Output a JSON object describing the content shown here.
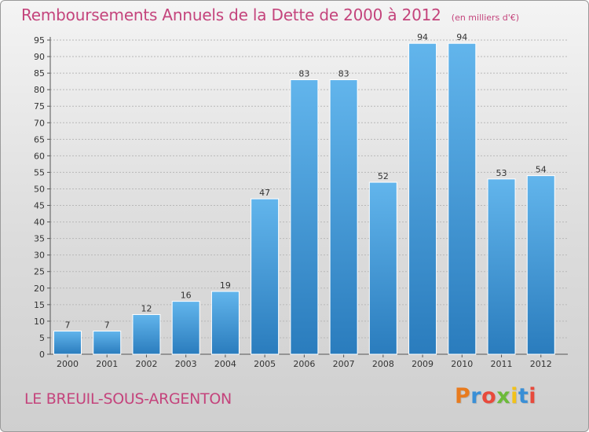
{
  "header": {
    "title": "Remboursements Annuels de la Dette de 2000 à 2012",
    "units": "(en milliers d'€)"
  },
  "footer": {
    "commune": "LE BREUIL-SOUS-ARGENTON",
    "logo_text": "Proxiti",
    "logo_colors": [
      "#e87b1e",
      "#3a8fd6",
      "#e84a3c",
      "#6cba3a",
      "#f2c21a",
      "#3a8fd6",
      "#e84a3c"
    ]
  },
  "colors": {
    "title": "#c4447c",
    "bar_top": "#62b5ec",
    "bar_bottom": "#2a7cbd",
    "grid": "#b8b8b8"
  },
  "chart_data": {
    "type": "bar",
    "title": "Remboursements Annuels de la Dette de 2000 à 2012",
    "subtitle": "(en milliers d'€)",
    "xlabel": "",
    "ylabel": "",
    "categories": [
      "2000",
      "2001",
      "2002",
      "2003",
      "2004",
      "2005",
      "2006",
      "2007",
      "2008",
      "2009",
      "2010",
      "2011",
      "2012"
    ],
    "values": [
      7,
      7,
      12,
      16,
      19,
      47,
      83,
      83,
      52,
      94,
      94,
      53,
      54
    ],
    "ylim": [
      0,
      95
    ],
    "yticks": [
      0,
      5,
      10,
      15,
      20,
      25,
      30,
      35,
      40,
      45,
      50,
      55,
      60,
      65,
      70,
      75,
      80,
      85,
      90,
      95
    ],
    "grid": true,
    "legend": "none",
    "data_labels": true
  }
}
